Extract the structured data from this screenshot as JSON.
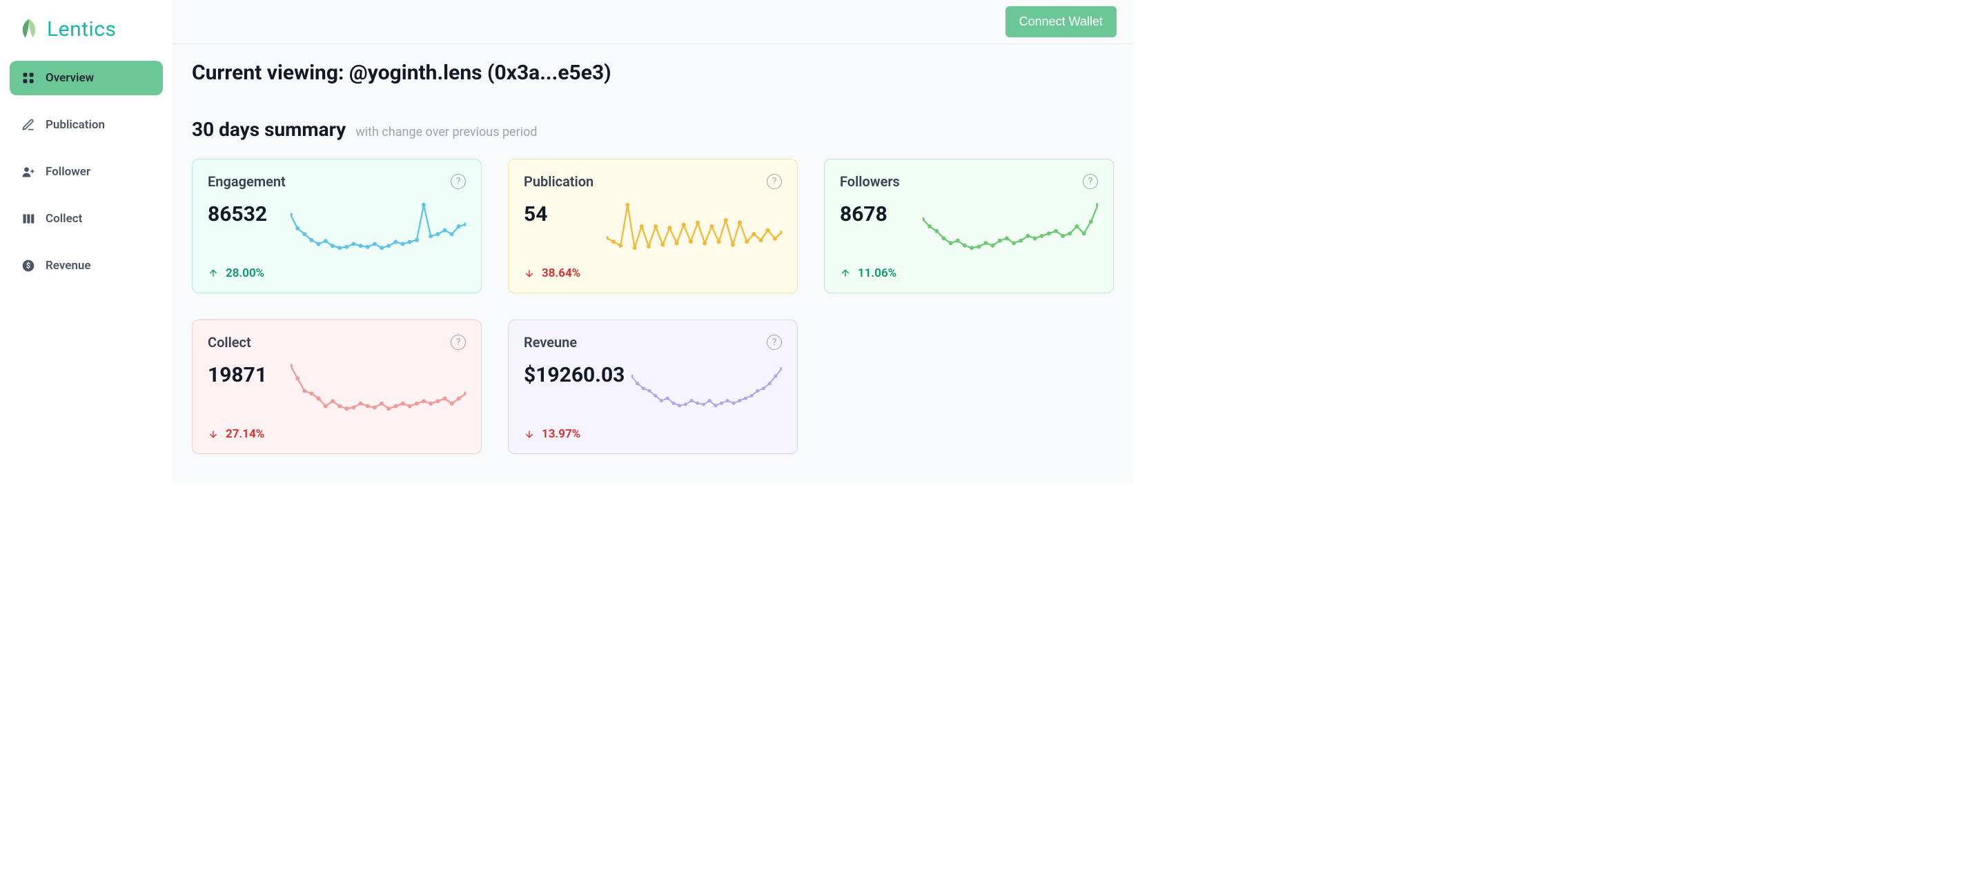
{
  "brand": {
    "name": "Lentics",
    "logo_color": "#14b8a6",
    "leaf_dark": "#5aa66f",
    "leaf_light": "#a7d79b"
  },
  "header": {
    "connect_label": "Connect Wallet",
    "connect_bg": "#6bc795",
    "connect_fg": "#ffffff"
  },
  "sidebar": {
    "items": [
      {
        "key": "overview",
        "label": "Overview",
        "active": true
      },
      {
        "key": "publication",
        "label": "Publication",
        "active": false
      },
      {
        "key": "follower",
        "label": "Follower",
        "active": false
      },
      {
        "key": "collect",
        "label": "Collect",
        "active": false
      },
      {
        "key": "revenue",
        "label": "Revenue",
        "active": false
      }
    ],
    "active_bg": "#6bc795"
  },
  "page": {
    "title": "Current viewing: @yoginth.lens (0x3a...e5e3)",
    "summary_title": "30 days summary",
    "summary_sub": "with change over previous period"
  },
  "cards": [
    {
      "key": "engagement",
      "title": "Engagement",
      "value": "86532",
      "change_dir": "up",
      "change_pct": "28.00%",
      "bg": "#eefdf7",
      "border": "#b6e8dc",
      "spark_color": "#60c3e3",
      "spark": [
        60,
        46,
        40,
        34,
        30,
        33,
        28,
        26,
        27,
        30,
        28,
        27,
        30,
        26,
        28,
        32,
        30,
        32,
        34,
        70,
        38,
        40,
        44,
        40,
        48,
        50
      ]
    },
    {
      "key": "publication",
      "title": "Publication",
      "value": "54",
      "change_dir": "down",
      "change_pct": "38.64%",
      "bg": "#fffbea",
      "border": "#f5e6a6",
      "spark_color": "#f0b93a",
      "spark": [
        35,
        30,
        25,
        78,
        22,
        50,
        24,
        50,
        26,
        48,
        28,
        52,
        30,
        55,
        28,
        50,
        30,
        58,
        26,
        55,
        30,
        40,
        32,
        45,
        34,
        42
      ]
    },
    {
      "key": "followers",
      "title": "Followers",
      "value": "8678",
      "change_dir": "up",
      "change_pct": "11.06%",
      "bg": "#f0fcf4",
      "border": "#bfe9cd",
      "spark_color": "#70c776",
      "spark": [
        50,
        44,
        40,
        34,
        30,
        32,
        28,
        26,
        27,
        30,
        28,
        32,
        34,
        30,
        32,
        36,
        34,
        36,
        38,
        40,
        36,
        38,
        44,
        38,
        48,
        62
      ]
    },
    {
      "key": "collect",
      "title": "Collect",
      "value": "19871",
      "change_dir": "down",
      "change_pct": "27.14%",
      "bg": "#fef3f2",
      "border": "#f6c9c6",
      "spark_color": "#ef9a99",
      "spark": [
        60,
        50,
        40,
        38,
        34,
        28,
        32,
        28,
        26,
        27,
        30,
        28,
        27,
        30,
        26,
        28,
        30,
        28,
        30,
        32,
        30,
        32,
        34,
        30,
        34,
        38
      ]
    },
    {
      "key": "revenue",
      "title": "Reveune",
      "value": "$19260.03",
      "change_dir": "down",
      "change_pct": "13.97%",
      "bg": "#f6f4ff",
      "border": "#d9d2f5",
      "spark_color": "#b2a6ea",
      "spark": [
        50,
        44,
        40,
        38,
        34,
        30,
        32,
        28,
        26,
        27,
        30,
        28,
        27,
        30,
        26,
        28,
        30,
        28,
        30,
        32,
        34,
        38,
        40,
        44,
        50,
        56
      ]
    }
  ],
  "colors": {
    "up": "#059669",
    "down": "#dc2626",
    "text_muted": "#9ca3af",
    "page_bg": "#f9fafb"
  }
}
